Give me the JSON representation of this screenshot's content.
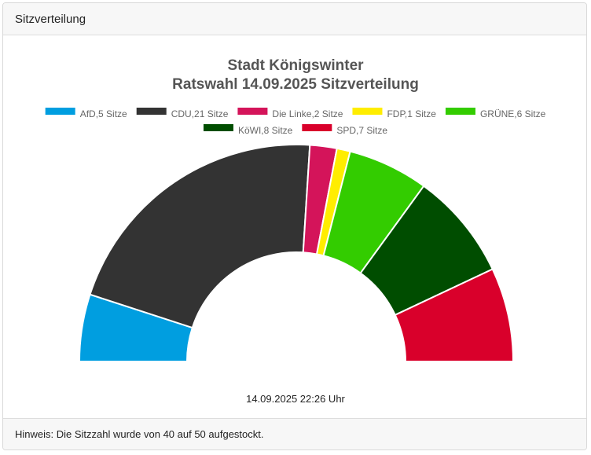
{
  "panel": {
    "header_title": "Sitzverteilung",
    "footer_note": "Hinweis: Die Sitzzahl wurde von 40 auf 50 aufgestockt."
  },
  "chart_data": {
    "type": "pie",
    "variant": "half-donut (parliament seat distribution)",
    "title_line1": "Stadt Königswinter",
    "title_line2": "Ratswahl 14.09.2025 Sitzverteilung",
    "timestamp": "14.09.2025 22:26 Uhr",
    "legend_position": "top",
    "series": [
      {
        "name": "AfD",
        "seats": 5,
        "legend_label": "AfD,5 Sitze",
        "color": "#009ee0"
      },
      {
        "name": "CDU",
        "seats": 21,
        "legend_label": "CDU,21 Sitze",
        "color": "#333333"
      },
      {
        "name": "Die Linke",
        "seats": 2,
        "legend_label": "Die Linke,2 Sitze",
        "color": "#d4145a"
      },
      {
        "name": "FDP",
        "seats": 1,
        "legend_label": "FDP,1 Sitze",
        "color": "#ffed00"
      },
      {
        "name": "GRÜNE",
        "seats": 6,
        "legend_label": "GRÜNE,6 Sitze",
        "color": "#33cc00"
      },
      {
        "name": "KöWI",
        "seats": 8,
        "legend_label": "KöWI,8 Sitze",
        "color": "#004d00"
      },
      {
        "name": "SPD",
        "seats": 7,
        "legend_label": "SPD,7 Sitze",
        "color": "#d9002b"
      }
    ],
    "total_seats": 50
  }
}
